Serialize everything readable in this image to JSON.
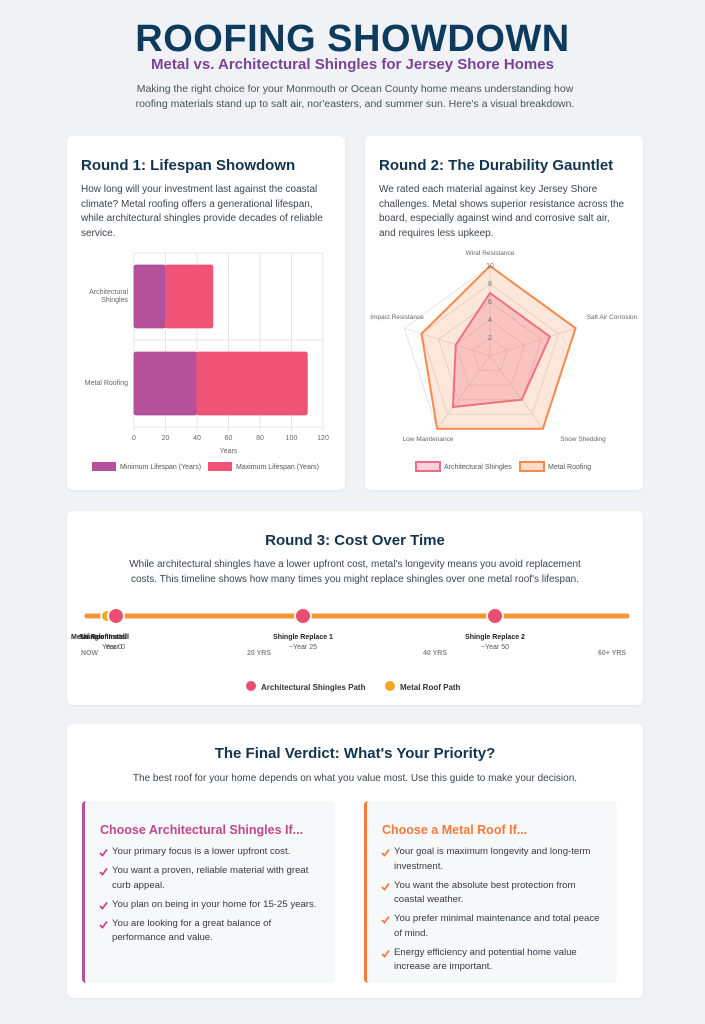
{
  "header": {
    "title": "ROOFING SHOWDOWN",
    "subtitle": "Metal vs. Architectural Shingles for Jersey Shore Homes",
    "intro": "Making the right choice for your Monmouth or Ocean County home means understanding how roofing materials stand up to salt air, nor'easters, and summer sun. Here's a visual breakdown."
  },
  "round1": {
    "heading": "Round 1: Lifespan Showdown",
    "text": "How long will your investment last against the coastal climate? Metal roofing offers a generational lifespan, while architectural shingles provide decades of reliable service."
  },
  "round2": {
    "heading": "Round 2: The Durability Gauntlet",
    "text": "We rated each material against key Jersey Shore challenges. Metal shows superior resistance across the board, especially against wind and corrosive salt air, and requires less upkeep."
  },
  "chart_data": [
    {
      "type": "bar",
      "orientation": "horizontal",
      "stacked": true,
      "categories": [
        "Architectural Shingles",
        "Metal Roofing"
      ],
      "series": [
        {
          "name": "Minimum Lifespan (Years)",
          "color": "#b5509a",
          "values": [
            20,
            40
          ]
        },
        {
          "name": "Maximum Lifespan (Years)",
          "color": "#ef5476",
          "values": [
            30,
            70
          ]
        }
      ],
      "xlabel": "Years",
      "xlim": [
        0,
        120
      ],
      "xticks": [
        0,
        20,
        40,
        60,
        80,
        100,
        120
      ],
      "grid": true
    },
    {
      "type": "radar",
      "categories": [
        "Wind Resistance",
        "Salt Air Corrosion",
        "Snow Shedding",
        "Low Maintenance",
        "Impact Resistance"
      ],
      "series": [
        {
          "name": "Architectural Shingles",
          "color": "#f06b8a",
          "values": [
            7,
            7,
            6,
            7,
            4
          ]
        },
        {
          "name": "Metal Roofing",
          "color": "#f7894a",
          "values": [
            10,
            10,
            10,
            10,
            8
          ]
        }
      ],
      "rlim": [
        0,
        10
      ],
      "rticks": [
        2,
        4,
        6,
        8,
        10
      ],
      "grid": true
    }
  ],
  "round3": {
    "heading": "Round 3: Cost Over Time",
    "text": "While architectural shingles have a lower upfront cost, metal's longevity means you avoid replacement costs. This timeline shows how many times you might replace shingles over one metal roof's lifespan.",
    "events": [
      {
        "label": "Metal Roof Install",
        "time": "Year 0"
      },
      {
        "label": "Shingle Install",
        "time": "Year 0"
      },
      {
        "label": "Shingle Replace 1",
        "time": "~Year 25"
      },
      {
        "label": "Shingle Replace 2",
        "time": "~Year 50"
      }
    ],
    "axis_labels": [
      "NOW",
      "20 YRS",
      "40 YRS",
      "60+ YRS"
    ],
    "legend": [
      "Architectural Shingles Path",
      "Metal Roof Path"
    ]
  },
  "verdict": {
    "heading": "The Final Verdict: What's Your Priority?",
    "text": "The best roof for your home depends on what you value most. Use this guide to make your decision.",
    "columns": [
      {
        "heading": "Choose Architectural Shingles If...",
        "items": [
          "Your primary focus is a lower upfront cost.",
          "You want a proven, reliable material with great curb appeal.",
          "You plan on being in your home for 15-25 years.",
          "You are looking for a great balance of performance and value."
        ]
      },
      {
        "heading": "Choose a Metal Roof If...",
        "items": [
          "Your goal is maximum longevity and long-term investment.",
          "You want the absolute best protection from coastal weather.",
          "You prefer minimal maintenance and total peace of mind.",
          "Energy efficiency and potential home value increase are important."
        ]
      }
    ]
  }
}
